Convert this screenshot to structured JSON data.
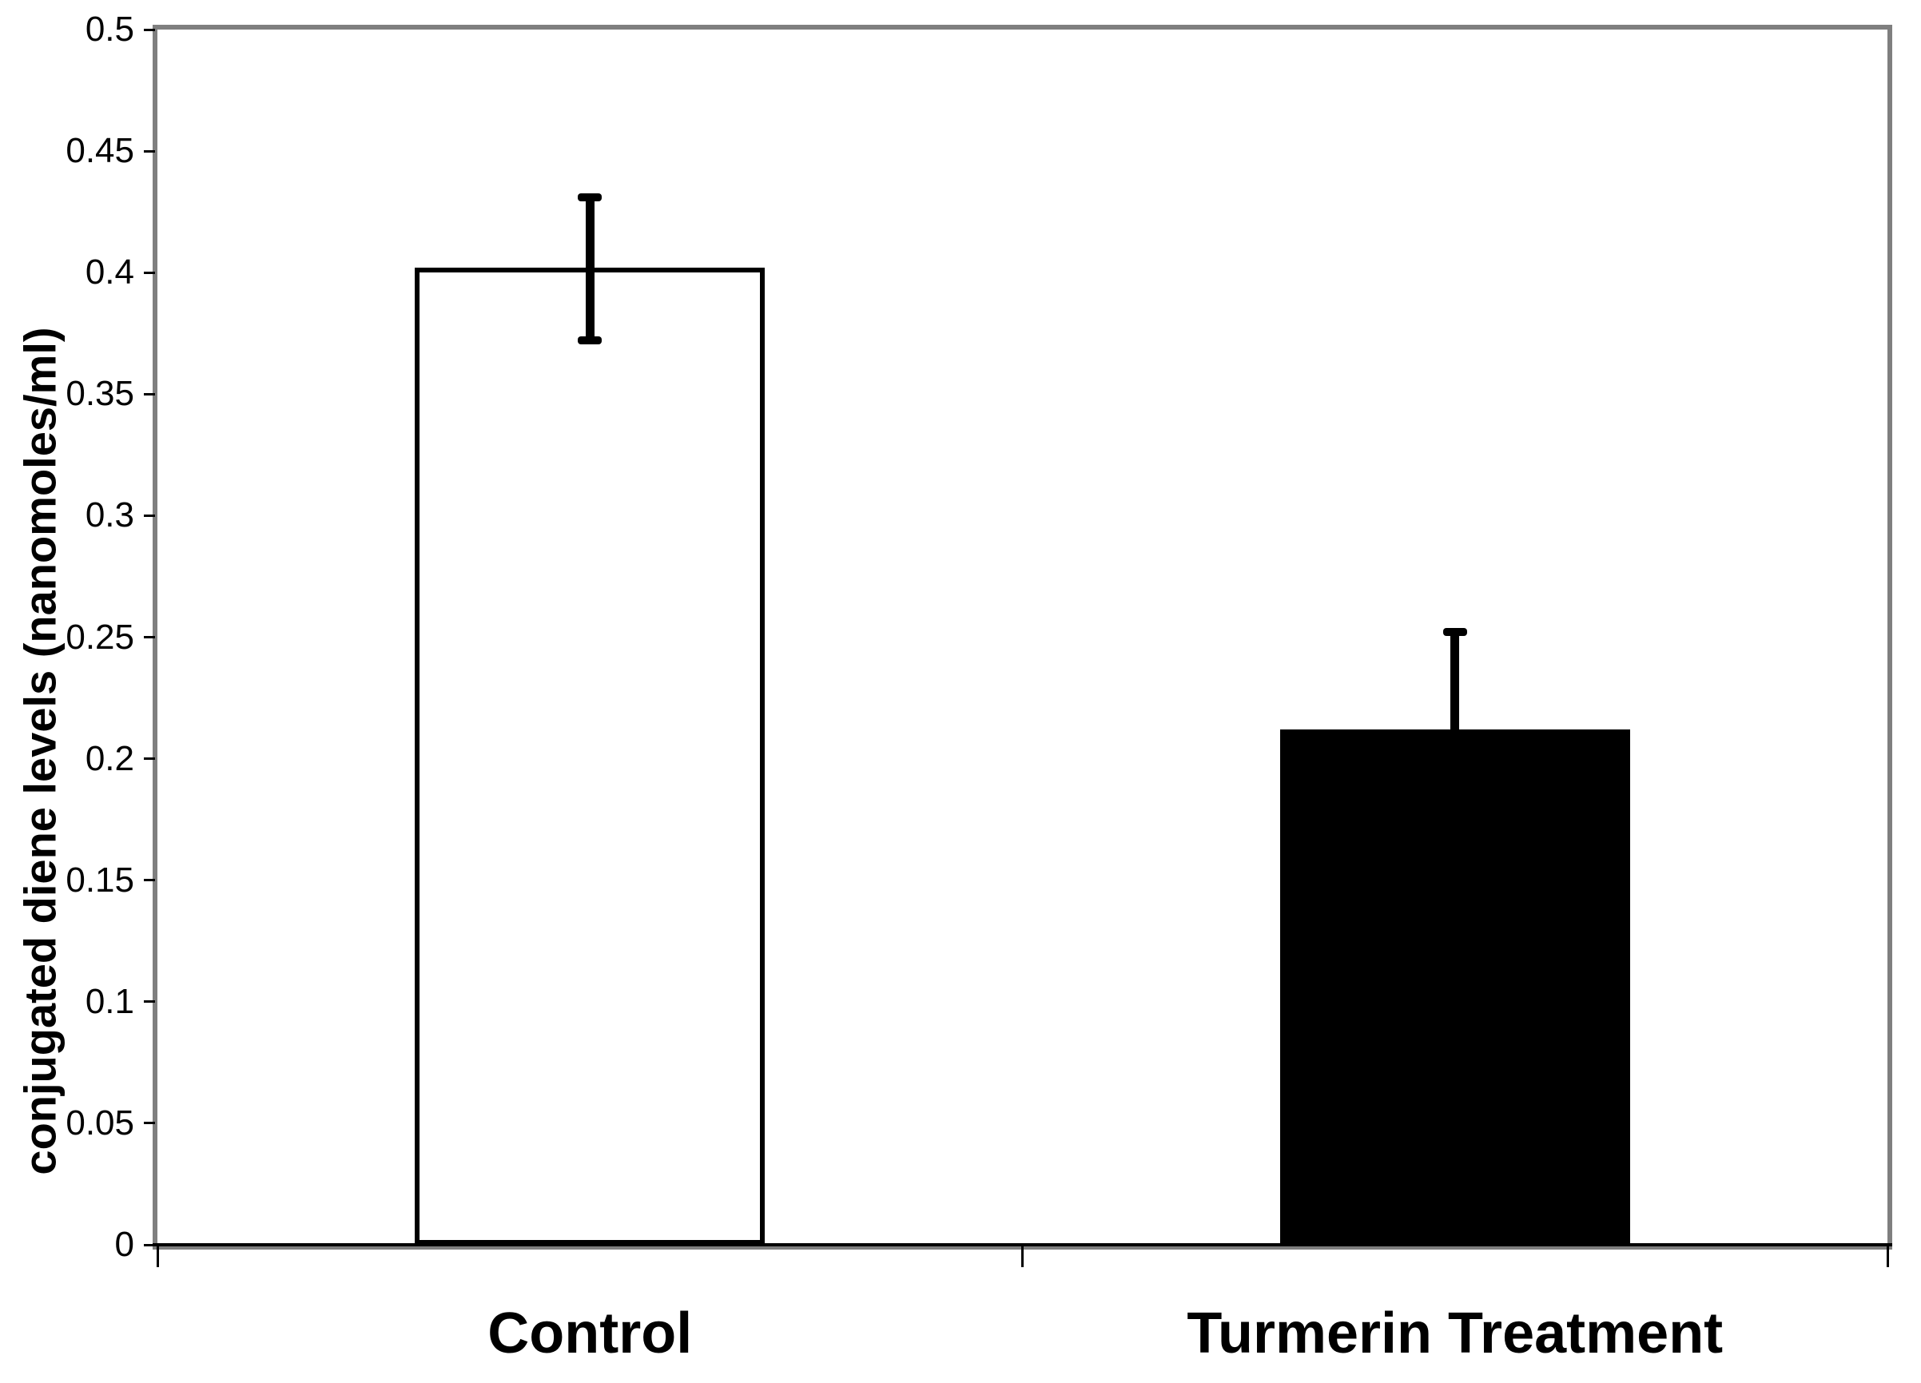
{
  "chart_data": {
    "type": "bar",
    "title": "",
    "categories": [
      "Control",
      "Turmerin Treatment"
    ],
    "values": [
      0.402,
      0.212
    ],
    "error_bars": [
      {
        "upper": 0.431,
        "lower": 0.372
      },
      {
        "upper": 0.252,
        "lower": null
      }
    ],
    "bar_fill_colors": [
      "#ffffff",
      "#000000"
    ],
    "bar_border_color": "#000000",
    "ylabel": "conjugated diene levels (nanomoles/ml)",
    "xlabel": "",
    "ylim": [
      0,
      0.5
    ],
    "ytick_step": 0.05,
    "ytick_labels": [
      "0",
      "0.05",
      "0.1",
      "0.15",
      "0.2",
      "0.25",
      "0.3",
      "0.35",
      "0.4",
      "0.45",
      "0.5"
    ],
    "grid": false,
    "legend": false,
    "axis_border_color": "#7f7f7f",
    "tick_mark_color": "#000000",
    "text_color": "#000000",
    "background_color": "#ffffff"
  }
}
